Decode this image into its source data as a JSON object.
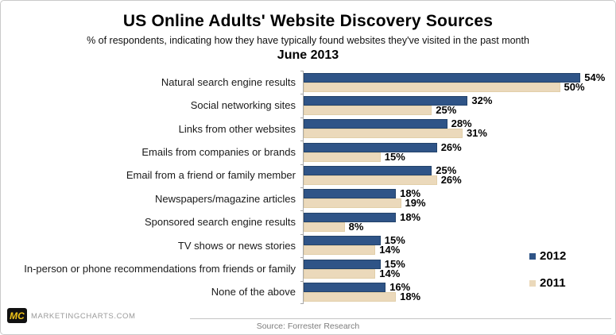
{
  "header": {
    "title": "US Online Adults' Website Discovery Sources",
    "subtitle": "% of respondents, indicating how they have typically found websites they've visited in the past month",
    "period": "June 2013"
  },
  "chart_data": {
    "type": "bar",
    "orientation": "horizontal",
    "title": "US Online Adults' Website Discovery Sources",
    "subtitle": "% of respondents, indicating how they have typically found websites they've visited in the past month",
    "period": "June 2013",
    "categories": [
      "Natural search engine results",
      "Social networking sites",
      "Links from other websites",
      "Emails from companies or brands",
      "Email from a friend or family member",
      "Newspapers/magazine articles",
      "Sponsored search engine results",
      "TV shows or news stories",
      "In-person or phone recommendations from friends or family",
      "None of the above"
    ],
    "series": [
      {
        "name": "2012",
        "color": "#2f5487",
        "values": [
          54,
          32,
          28,
          26,
          25,
          18,
          18,
          15,
          15,
          16
        ]
      },
      {
        "name": "2011",
        "color": "#ebd9bb",
        "values": [
          50,
          25,
          31,
          15,
          26,
          19,
          8,
          14,
          14,
          18
        ]
      }
    ],
    "value_suffix": "%",
    "xlim": [
      0,
      60
    ],
    "grid": false,
    "legend_position": "right",
    "value_labels": true
  },
  "footer": {
    "logo_text": "MC",
    "brand": "MARKETINGCHARTS.COM",
    "source": "Source: Forrester Research"
  },
  "colors": {
    "bar_2012": "#2f5487",
    "bar_2011": "#ebd9bb",
    "axis": "#a8a8a8"
  }
}
